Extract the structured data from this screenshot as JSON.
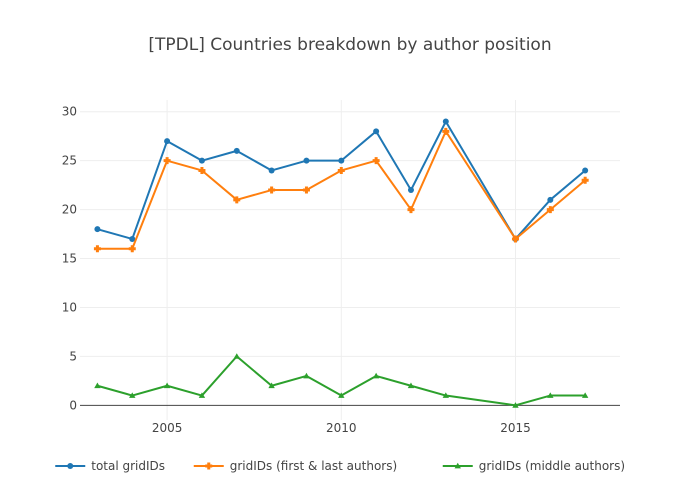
{
  "chart_data": {
    "type": "line",
    "title": "[TPDL] Countries breakdown by author position",
    "xlabel": "",
    "ylabel": "",
    "x": [
      2003,
      2004,
      2005,
      2006,
      2007,
      2008,
      2009,
      2010,
      2011,
      2012,
      2013,
      2015,
      2016,
      2017
    ],
    "xlim": [
      2002.5,
      2018
    ],
    "ylim": [
      -1.5,
      31.2
    ],
    "x_ticks": [
      2005,
      2010,
      2015
    ],
    "y_ticks": [
      0,
      5,
      10,
      15,
      20,
      25,
      30
    ],
    "grid": true,
    "legend_position": "bottom",
    "series": [
      {
        "name": "total gridIDs",
        "color": "#1f77b4",
        "marker": "circle",
        "values": [
          18,
          17,
          27,
          25,
          26,
          24,
          25,
          25,
          28,
          22,
          29,
          17,
          21,
          24
        ]
      },
      {
        "name": "gridIDs (first & last authors)",
        "color": "#ff7f0e",
        "marker": "cross",
        "values": [
          16,
          16,
          25,
          24,
          21,
          22,
          22,
          24,
          25,
          20,
          28,
          17,
          20,
          23
        ]
      },
      {
        "name": "gridIDs (middle authors)",
        "color": "#2ca02c",
        "marker": "triangle",
        "values": [
          2,
          1,
          2,
          1,
          5,
          2,
          3,
          1,
          3,
          2,
          1,
          0,
          1,
          1
        ]
      }
    ]
  }
}
